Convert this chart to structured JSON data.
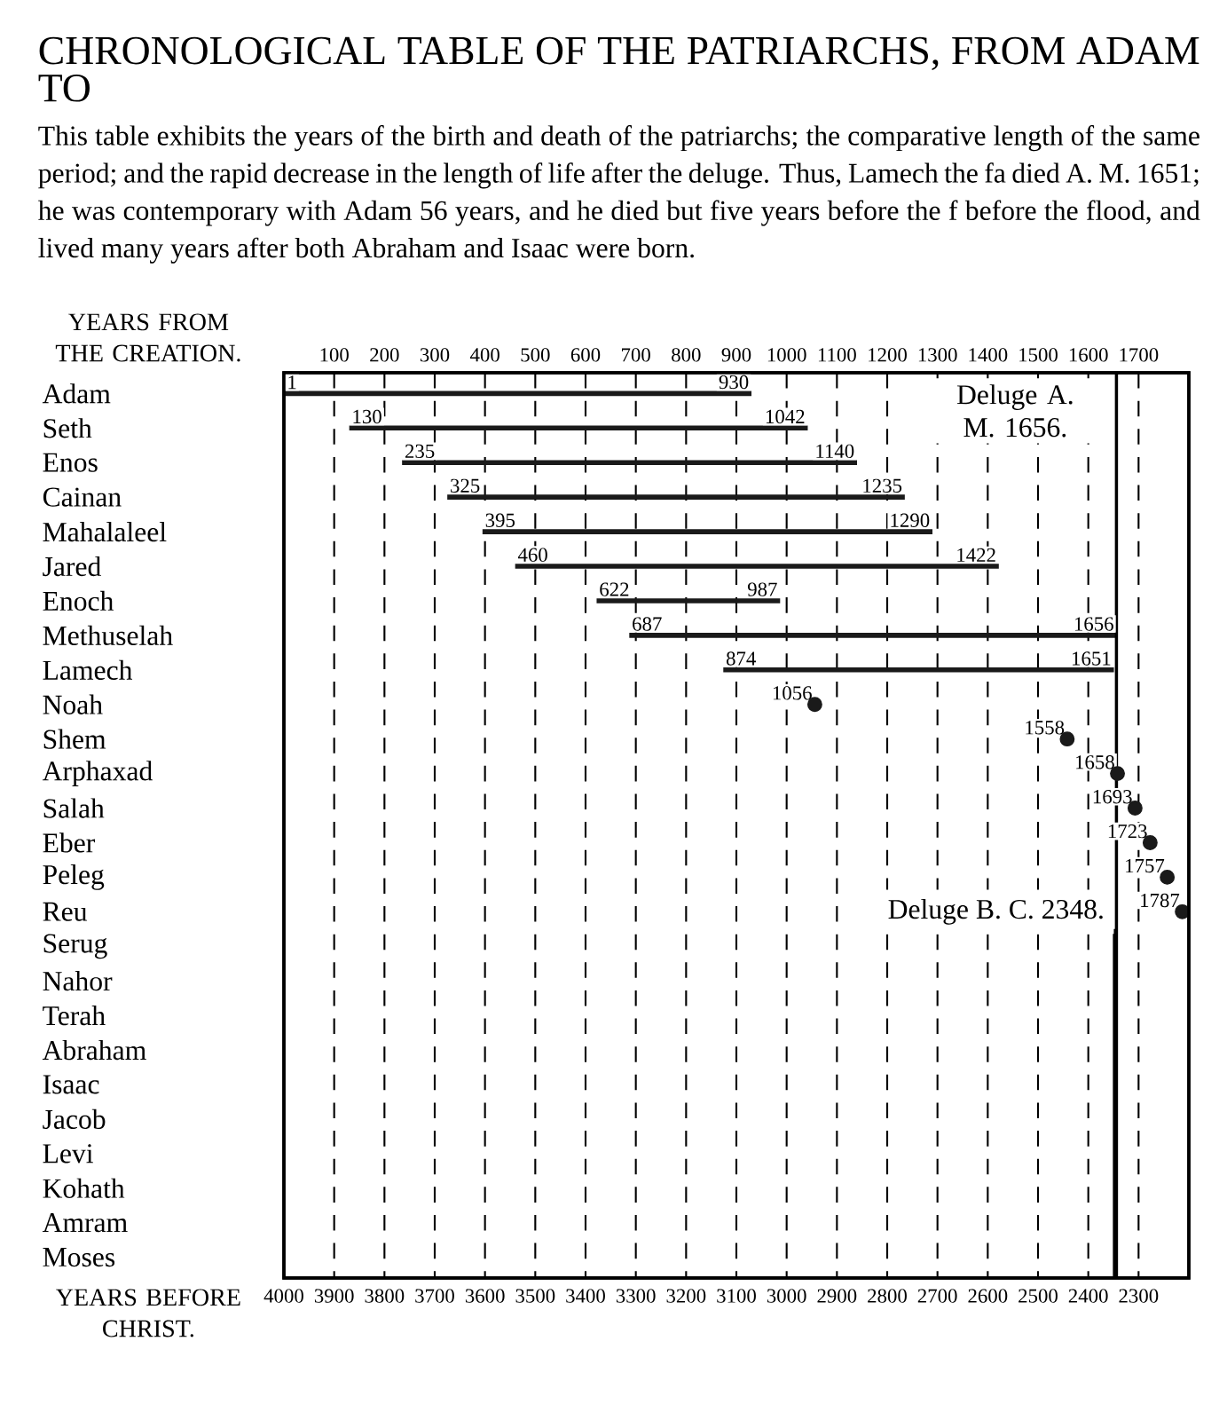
{
  "chart_data": {
    "type": "bar",
    "orientation": "horizontal",
    "title": "CHRONOLOGICAL TABLE OF THE PATRIARCHS, FROM ADAM TO",
    "subtitle": "This table exhibits the years of the birth and death of the patriarchs; the comparative length of the same period; and the rapid decrease in the length of life after the deluge.   Thus, Lamech the fa died A. M. 1651; he was contemporary with Adam 56 years, and he died but five years before the f before the flood, and lived many years after both Abraham and Isaac were born.",
    "xlabel": "YEARS FROM THE CREATION.",
    "x2label": "YEARS BEFORE CHRIST.",
    "categories": [
      "Adam",
      "Seth",
      "Enos",
      "Cainan",
      "Mahalaleel",
      "Jared",
      "Enoch",
      "Methuselah",
      "Lamech",
      "Noah",
      "Shem",
      "Arphaxad",
      "Salah",
      "Eber",
      "Peleg",
      "Reu",
      "Serug",
      "Nahor",
      "Terah",
      "Abraham",
      "Isaac",
      "Jacob",
      "Levi",
      "Kohath",
      "Amram",
      "Moses"
    ],
    "series": [
      {
        "color": "#1a1a1a",
        "base": [
          1,
          130,
          235,
          325,
          395,
          460,
          622,
          687,
          874,
          null,
          null,
          null,
          null,
          null,
          null,
          null,
          null,
          null,
          null,
          null,
          null,
          null,
          null,
          null,
          null,
          null
        ],
        "values": [
          929,
          912,
          905,
          910,
          895,
          962,
          365,
          969,
          777,
          null,
          null,
          null,
          null,
          null,
          null,
          null,
          null,
          null,
          null,
          null,
          null,
          null,
          null,
          null,
          null,
          null
        ]
      },
      {
        "type": "scatter",
        "marker": "circle",
        "color": "#1a1a1a",
        "values": [
          null,
          null,
          null,
          null,
          null,
          null,
          null,
          null,
          null,
          1056,
          1558,
          1658,
          1693,
          1723,
          1757,
          1787,
          null,
          null,
          null,
          null,
          null,
          null,
          null,
          null,
          null,
          null
        ]
      }
    ],
    "xlim": [
      0,
      1800
    ],
    "xticks": [
      100,
      200,
      300,
      400,
      500,
      600,
      700,
      800,
      900,
      1000,
      1100,
      1200,
      1300,
      1400,
      1500,
      1600,
      1700
    ],
    "x2lim": [
      4000,
      2200
    ],
    "x2ticks": [
      4000,
      3900,
      3800,
      3700,
      3600,
      3500,
      3400,
      3300,
      3200,
      3100,
      3000,
      2900,
      2800,
      2700,
      2600,
      2500,
      2400,
      2300
    ],
    "grid": "x",
    "ref_lines": [
      {
        "axis": "x",
        "value": 1656,
        "label": "Deluge A. M. 1656."
      },
      {
        "axis": "x2",
        "value": 2348,
        "label": "Deluge B. C. 2348."
      }
    ],
    "annotations": [
      {
        "text": "1",
        "x": 1,
        "y": "Adam"
      },
      {
        "text": "930",
        "x": 930,
        "y": "Adam"
      },
      {
        "text": "130",
        "x": 130,
        "y": "Seth"
      },
      {
        "text": "1042",
        "x": 1042,
        "y": "Seth"
      },
      {
        "text": "235",
        "x": 235,
        "y": "Enos"
      },
      {
        "text": "1140",
        "x": 1140,
        "y": "Enos"
      },
      {
        "text": "325",
        "x": 325,
        "y": "Cainan"
      },
      {
        "text": "1235",
        "x": 1235,
        "y": "Cainan"
      },
      {
        "text": "395",
        "x": 395,
        "y": "Mahalaleel"
      },
      {
        "text": "1290",
        "x": 1290,
        "y": "Mahalaleel"
      },
      {
        "text": "460",
        "x": 460,
        "y": "Jared"
      },
      {
        "text": "1422",
        "x": 1422,
        "y": "Jared"
      },
      {
        "text": "622",
        "x": 622,
        "y": "Enoch"
      },
      {
        "text": "987",
        "x": 987,
        "y": "Enoch"
      },
      {
        "text": "687",
        "x": 687,
        "y": "Methuselah"
      },
      {
        "text": "1656",
        "x": 1656,
        "y": "Methuselah"
      },
      {
        "text": "874",
        "x": 874,
        "y": "Lamech"
      },
      {
        "text": "1651",
        "x": 1651,
        "y": "Lamech"
      },
      {
        "text": "1056",
        "x": 1056,
        "y": "Noah"
      },
      {
        "text": "1558",
        "x": 1558,
        "y": "Shem"
      },
      {
        "text": "1658",
        "x": 1658,
        "y": "Arphaxad"
      },
      {
        "text": "1693",
        "x": 1693,
        "y": "Salah"
      },
      {
        "text": "1723",
        "x": 1723,
        "y": "Eber"
      },
      {
        "text": "1757",
        "x": 1757,
        "y": "Peleg"
      },
      {
        "text": "1787",
        "x": 1787,
        "y": "Reu"
      }
    ]
  }
}
